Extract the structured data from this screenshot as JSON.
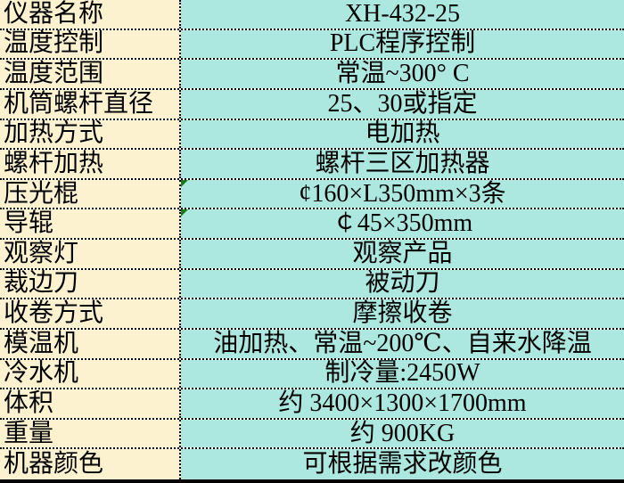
{
  "table": {
    "title": "equipment-spec-sheet",
    "colors": {
      "label_column_bg": "#FCF2CF",
      "value_column_bg": "#ACE8E0",
      "grid_border": "#000000",
      "error_triangle": "#1A7A1A"
    },
    "rows": [
      {
        "label": "仪器名称",
        "value": "XH-432-25",
        "error_marker": false
      },
      {
        "label": "温度控制",
        "value": "PLC程序控制",
        "error_marker": false
      },
      {
        "label": "温度范围",
        "value": "常温~300° C",
        "error_marker": false
      },
      {
        "label": "机筒螺杆直径",
        "value": "25、30或指定",
        "error_marker": false
      },
      {
        "label": "加热方式",
        "value": "电加热",
        "error_marker": false
      },
      {
        "label": "螺杆加热",
        "value": "螺杆三区加热器",
        "error_marker": false
      },
      {
        "label": "压光棍",
        "value": "¢160×L350mm×3条",
        "error_marker": true
      },
      {
        "label": "导辊",
        "value": "￠45×350mm",
        "error_marker": true
      },
      {
        "label": "观察灯",
        "value": "观察产品",
        "error_marker": false
      },
      {
        "label": "裁边刀",
        "value": "被动刀",
        "error_marker": false
      },
      {
        "label": "收卷方式",
        "value": "摩擦收卷",
        "error_marker": false
      },
      {
        "label": "模温机",
        "value": "油加热、常温~200℃、自来水降温",
        "error_marker": false
      },
      {
        "label": "冷水机",
        "value": "制冷量:2450W",
        "error_marker": false
      },
      {
        "label": "体积",
        "value": "约 3400×1300×1700mm",
        "error_marker": false
      },
      {
        "label": "重量",
        "value": "约 900KG",
        "error_marker": false
      },
      {
        "label": "机器颜色",
        "value": "可根据需求改颜色",
        "error_marker": false
      }
    ]
  }
}
